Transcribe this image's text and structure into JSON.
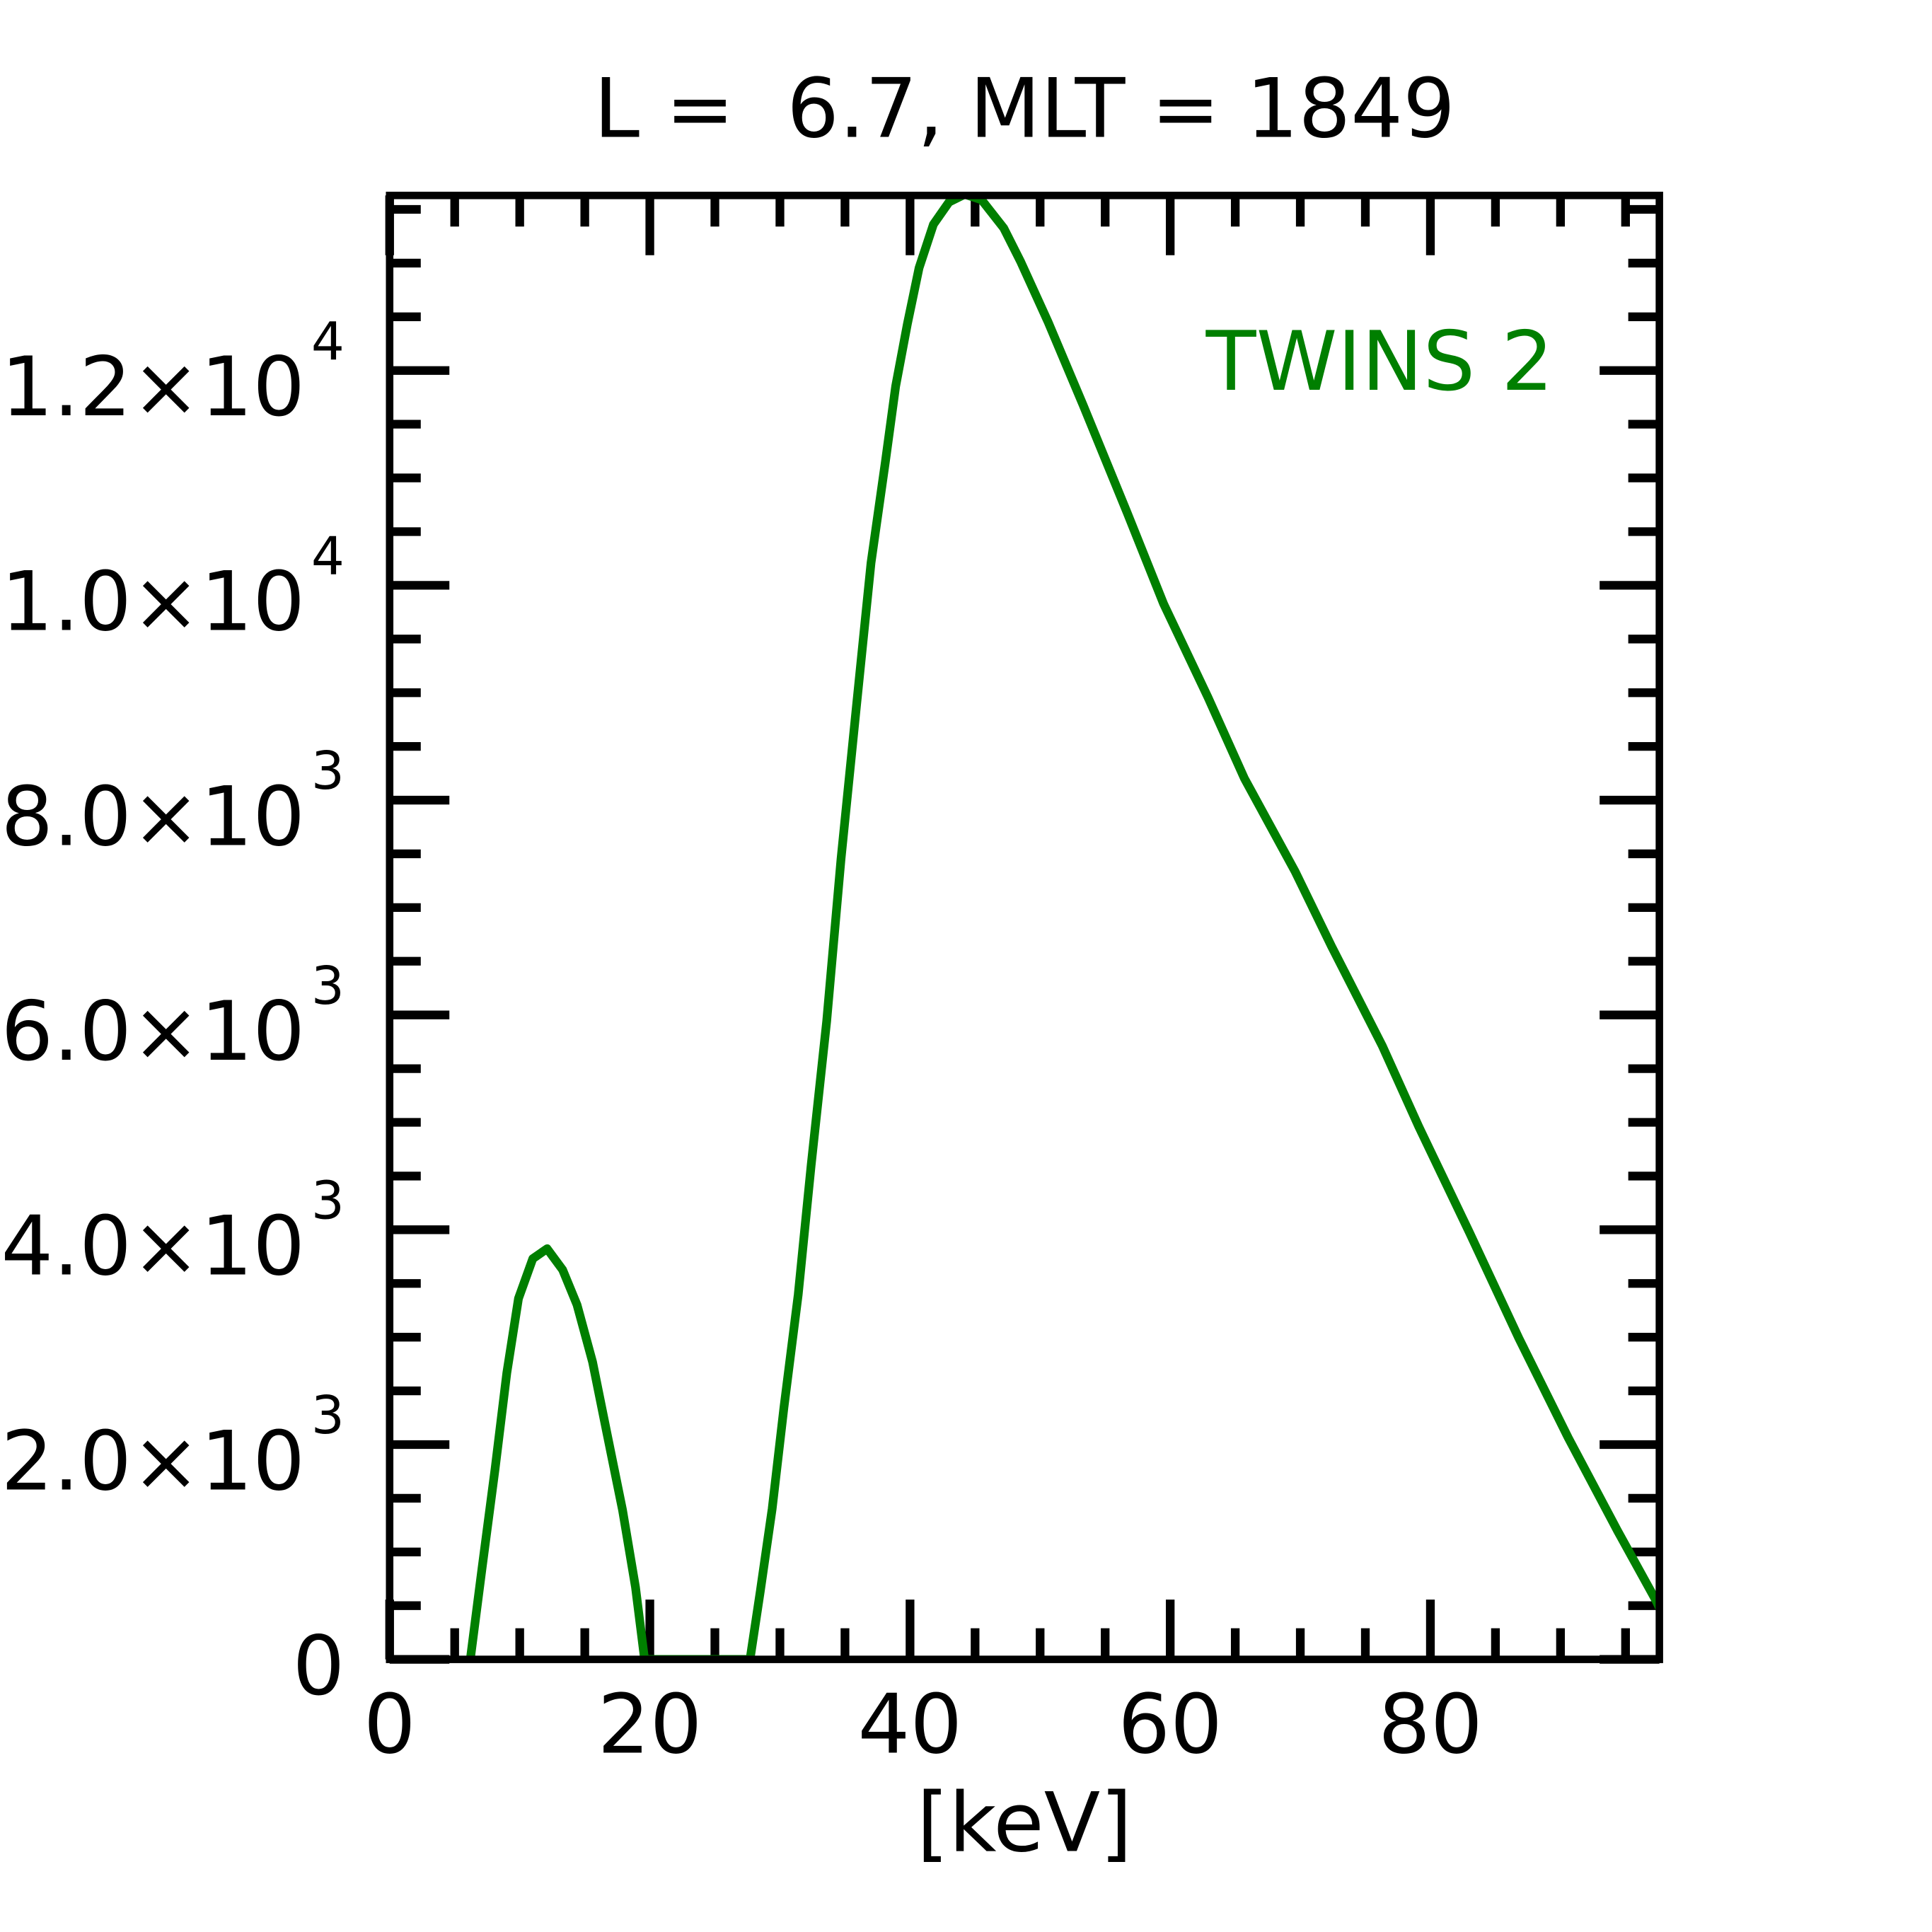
{
  "chart_data": {
    "type": "line",
    "title": "L =  6.7, MLT = 1849",
    "xlabel": "[keV]",
    "ylabel": "",
    "xlim": [
      0,
      97.6
    ],
    "ylim": [
      0,
      13630
    ],
    "grid": false,
    "xticks": [
      0,
      20,
      40,
      60,
      80
    ],
    "xtick_labels": [
      "0",
      "20",
      "40",
      "60",
      "80"
    ],
    "yticks": [
      0,
      2000,
      4000,
      6000,
      8000,
      10000,
      12000
    ],
    "ytick_labels": [
      {
        "base": "0",
        "exp": ""
      },
      {
        "base": "2.0×10",
        "exp": "3"
      },
      {
        "base": "4.0×10",
        "exp": "3"
      },
      {
        "base": "6.0×10",
        "exp": "3"
      },
      {
        "base": "8.0×10",
        "exp": "3"
      },
      {
        "base": "1.0×10",
        "exp": "4"
      },
      {
        "base": "1.2×10",
        "exp": "4"
      }
    ],
    "legend_position": "top-right",
    "series": [
      {
        "name": "TWINS 2",
        "color": "#007f00",
        "x": [
          6.2,
          7.1,
          8.1,
          9.0,
          9.9,
          11.0,
          12.1,
          13.3,
          14.4,
          15.6,
          16.7,
          17.9,
          18.9,
          19.6,
          27.7,
          28.5,
          29.4,
          30.3,
          31.4,
          32.4,
          33.6,
          34.7,
          35.9,
          37.0,
          38.1,
          38.9,
          39.8,
          40.7,
          41.8,
          43.0,
          44.2,
          45.5,
          47.2,
          48.5,
          50.6,
          53.3,
          56.7,
          59.5,
          62.9,
          65.7,
          69.6,
          72.4,
          76.3,
          79.1,
          83.0,
          86.8,
          90.6,
          94.4,
          97.3,
          97.6
        ],
        "y": [
          0,
          846,
          1773,
          2665,
          3360,
          3731,
          3824,
          3627,
          3302,
          2770,
          2109,
          1390,
          672,
          0,
          0,
          637,
          1402,
          2341,
          3395,
          4600,
          5944,
          7451,
          8899,
          10209,
          11147,
          11854,
          12433,
          12955,
          13360,
          13569,
          13640,
          13590,
          13326,
          13013,
          12456,
          11680,
          10672,
          9826,
          8957,
          8204,
          7335,
          6640,
          5713,
          4960,
          3975,
          2990,
          2063,
          1193,
          556,
          480
        ]
      }
    ]
  }
}
